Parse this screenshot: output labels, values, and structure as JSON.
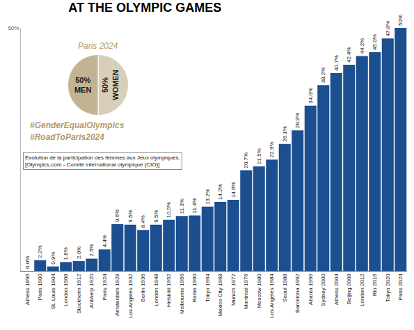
{
  "chart_data": [
    {
      "type": "bar",
      "title": "AT THE OLYMPIC GAMES",
      "categories": [
        "Athens 1896",
        "Paris 1900",
        "St. Louis 1904",
        "London 1908",
        "Stockholm 1912",
        "Antwerp 1920",
        "Paris 1924",
        "Amsterdam 1928",
        "Los Angeles 1932",
        "Berlin 1936",
        "London 1948",
        "Helsinki 1952",
        "Melbourne 1956",
        "Rome 1960",
        "Tokyo 1964",
        "Mexico City 1968",
        "Munich 1972",
        "Montreal 1976",
        "Moscow 1980",
        "Los Angeles 1984",
        "Seoul 1988",
        "Barcelona 1992",
        "Atlanta 1996",
        "Sydney 2000",
        "Athens 2004",
        "Beijing 2008",
        "London 2012",
        "Rio 2016",
        "Tokyo 2020",
        "Paris 2024"
      ],
      "values": [
        0.0,
        2.2,
        0.9,
        1.8,
        2.0,
        2.5,
        4.4,
        9.6,
        9.5,
        8.4,
        9.5,
        10.5,
        11.3,
        11.4,
        13.2,
        14.2,
        14.6,
        20.7,
        21.5,
        22.9,
        26.1,
        28.9,
        34.0,
        38.2,
        40.7,
        42.4,
        44.2,
        45.0,
        47.8,
        50
      ],
      "value_labels": [
        "0.0%",
        "2.2%",
        "0.9%",
        "1.8%",
        "2.0%",
        "2.5%",
        "4.4%",
        "9.6%",
        "9.5%",
        "8.4%",
        "9.5%",
        "10.5%",
        "11.3%",
        "11.4%",
        "13.2%",
        "14.2%",
        "14.6%",
        "20.7%",
        "21.5%",
        "22.9%",
        "26.1%",
        "28.9%",
        "34.0%",
        "38.2%",
        "40.7%",
        "42.4%",
        "44.2%",
        "45.0%",
        "47.8%",
        "50%"
      ],
      "color": "#1b4f8f",
      "ylim": [
        0,
        50
      ],
      "yticks": [
        {
          "value": 50,
          "label": "50%"
        }
      ],
      "grid": false,
      "data_labels": true,
      "annotations": [
        "#GenderEqualOlympics",
        "#RoadToParis2024",
        "Evolution de la participation des femmes aux Jeux olympiques. [Olympics.com - Comité international olympique (CIO)]"
      ]
    },
    {
      "type": "pie",
      "title": "Paris 2024",
      "categories": [
        "WOMEN",
        "MEN"
      ],
      "values": [
        50,
        50
      ],
      "value_labels": [
        "50%",
        "50%"
      ],
      "colors": [
        "#d8cfbb",
        "#c2b492"
      ],
      "data_labels": true
    }
  ]
}
